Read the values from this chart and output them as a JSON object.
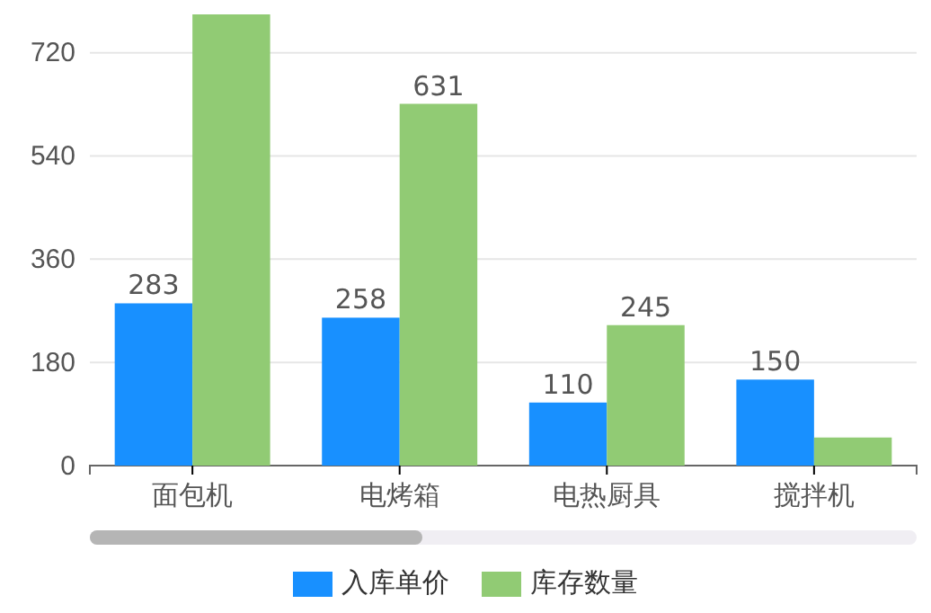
{
  "chart_data": {
    "type": "bar",
    "categories": [
      "面包机",
      "电烤箱",
      "电热厨具",
      "搅拌机"
    ],
    "series": [
      {
        "name": "入库单价",
        "color": "#1890ff",
        "values": [
          283,
          258,
          110,
          150
        ],
        "value_labels": [
          "283",
          "258",
          "110",
          "150"
        ]
      },
      {
        "name": "库存数量",
        "color": "#91cb74",
        "values": [
          787,
          631,
          245,
          49
        ],
        "value_labels": [
          null,
          "631",
          "245",
          null
        ]
      }
    ],
    "ylim": [
      0,
      787
    ],
    "yticks": [
      0,
      180,
      360,
      540,
      720
    ],
    "grid": "y",
    "legend": "bottom"
  }
}
